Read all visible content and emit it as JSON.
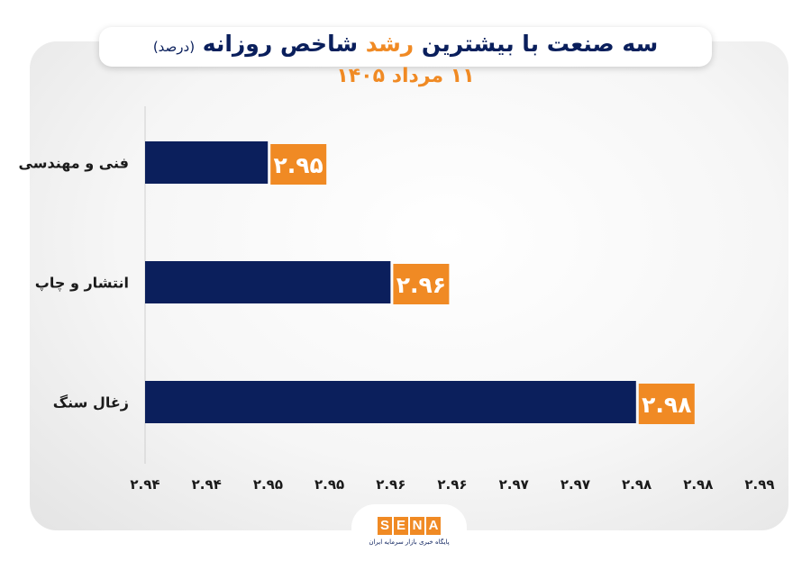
{
  "title": {
    "part1": "سه صنعت با بیشترین",
    "highlight": "رشد",
    "part2": "شاخص روزانه",
    "unit": "(درصد)",
    "subtitle": "۱۱ مرداد ۱۴۰۵"
  },
  "colors": {
    "bar": "#0b1f5c",
    "label_bg": "#f08a24",
    "accent_teal": "#1aa7a0",
    "text_dark": "#1a1a1a"
  },
  "chart_data": {
    "type": "bar",
    "orientation": "horizontal",
    "categories": [
      "فنی و مهندسی",
      "انتشار و چاپ",
      "زغال سنگ"
    ],
    "values": [
      2.95,
      2.96,
      2.98
    ],
    "value_labels": [
      "۲.۹۵",
      "۲.۹۶",
      "۲.۹۸"
    ],
    "xlim": [
      2.94,
      2.99
    ],
    "x_ticks": [
      "۲.۹۴",
      "۲.۹۴",
      "۲.۹۵",
      "۲.۹۵",
      "۲.۹۶",
      "۲.۹۶",
      "۲.۹۷",
      "۲.۹۷",
      "۲.۹۸",
      "۲.۹۸",
      "۲.۹۹"
    ],
    "grid": false
  },
  "logo": {
    "letters": [
      "S",
      "E",
      "N",
      "A"
    ],
    "tagline": "پایگاه خبری بازار سرمایه ایران"
  }
}
